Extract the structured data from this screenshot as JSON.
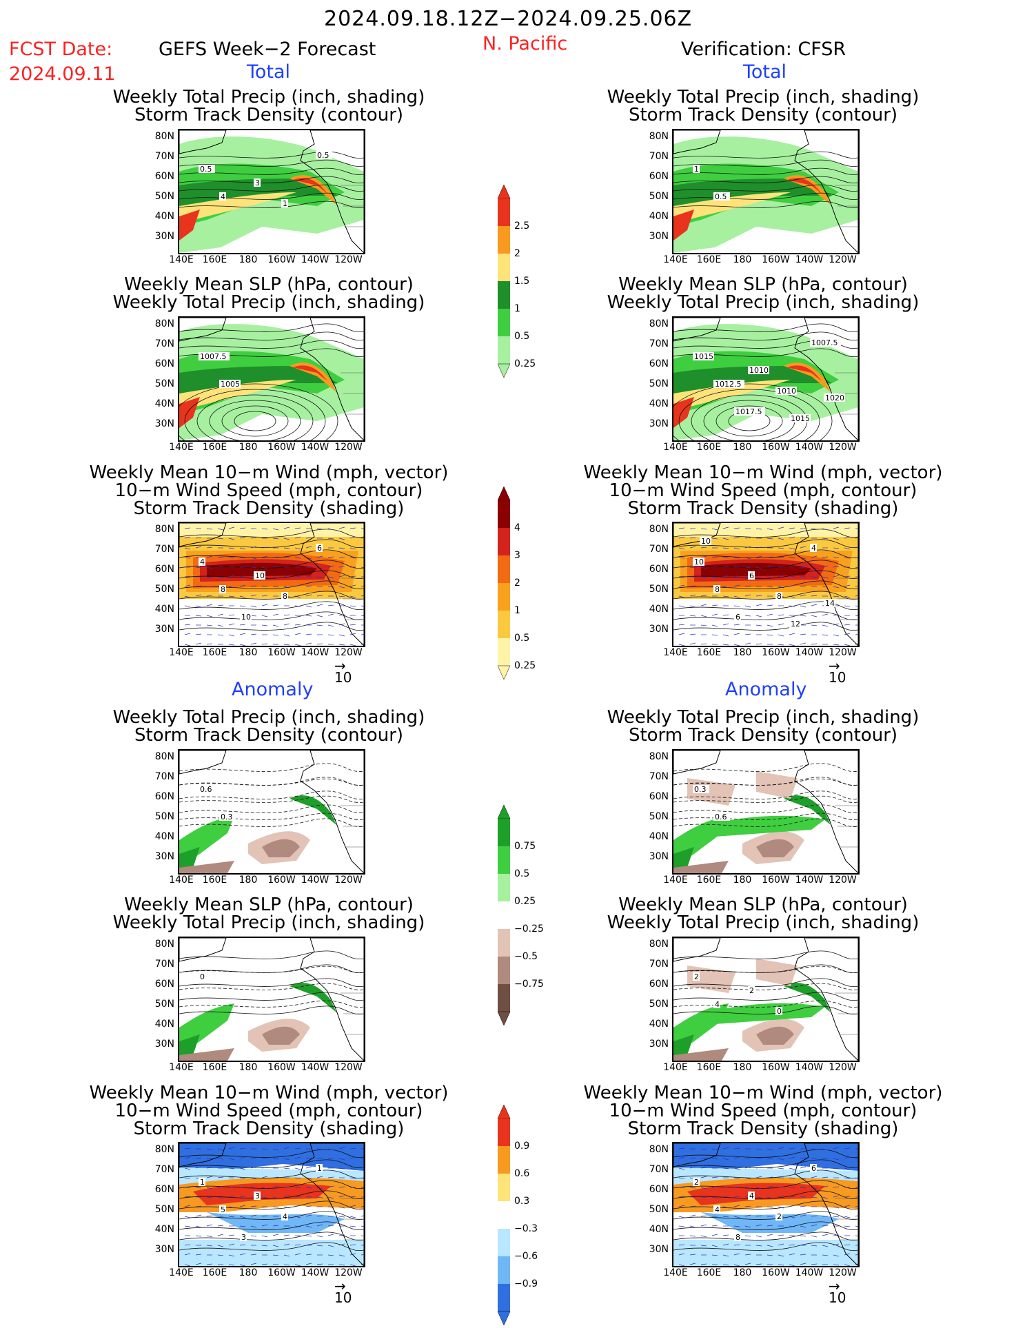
{
  "header": {
    "date_range": "2024.09.18.12Z−2024.09.25.06Z",
    "fcst_label": "FCST Date:",
    "fcst_date": "2024.09.11",
    "model": "GEFS Week−2 Forecast",
    "region": "N. Pacific",
    "verification": "Verification: CFSR"
  },
  "sections": {
    "total": "Total",
    "anomaly": "Anomaly"
  },
  "titles": {
    "precip_track": [
      "Weekly Total Precip (inch, shading)",
      "Storm Track Density (contour)"
    ],
    "slp_precip": [
      "Weekly Mean SLP (hPa, contour)",
      "Weekly Total Precip (inch, shading)"
    ],
    "wind_track": [
      "Weekly Mean 10−m Wind (mph, vector)",
      "10−m Wind Speed (mph, contour)",
      "Storm Track Density (shading)"
    ]
  },
  "axes": {
    "lat_ticks": [
      "80N",
      "70N",
      "60N",
      "50N",
      "40N",
      "30N"
    ],
    "lon_ticks": [
      "140E",
      "160E",
      "180",
      "160W",
      "140W",
      "120W"
    ]
  },
  "vector_ref": "10",
  "colorbars": {
    "precip_total": {
      "labels": [
        "2.5",
        "2",
        "1.5",
        "1",
        "0.5",
        "0.25"
      ],
      "colors": [
        "#e8341c",
        "#f79a1f",
        "#fde37a",
        "#1e8f2a",
        "#3fce3f",
        "#a6f0a0"
      ]
    },
    "track_total": {
      "labels": [
        "4",
        "3",
        "2",
        "1",
        "0.5",
        "0.25"
      ],
      "colors": [
        "#8b0000",
        "#d4221c",
        "#f26a12",
        "#f9a11d",
        "#fbc93f",
        "#fff3a8"
      ]
    },
    "precip_anom": {
      "labels": [
        "0.75",
        "0.5",
        "0.25",
        "−0.25",
        "−0.5",
        "−0.75"
      ],
      "colors": [
        "#1e9f2a",
        "#3fce3f",
        "#a6f0a0",
        "#ffffff",
        "#e2c3b6",
        "#b08a7e",
        "#6f4e43"
      ]
    },
    "track_anom": {
      "labels": [
        "0.9",
        "0.6",
        "0.3",
        "−0.3",
        "−0.6",
        "−0.9"
      ],
      "colors": [
        "#e8341c",
        "#f79a1f",
        "#fde37a",
        "#ffffff",
        "#b8e7ff",
        "#6fb7f5",
        "#2f6fe0"
      ]
    }
  },
  "panel_labels": {
    "l1": [
      "0.5",
      "4",
      "3",
      "1",
      "0.5"
    ],
    "r1": [
      "1",
      "0.5"
    ],
    "l2": [
      "1007.5",
      "1005"
    ],
    "r2": [
      "1015",
      "1012.5",
      "1010",
      "1010",
      "1007.5",
      "1017.5",
      "1015",
      "1020"
    ],
    "l3": [
      "4",
      "8",
      "10",
      "8",
      "6",
      "10"
    ],
    "r3": [
      "10",
      "8",
      "6",
      "8",
      "4",
      "6",
      "12",
      "14",
      "10"
    ],
    "l4": [
      "0.6",
      "0.3"
    ],
    "r4": [
      "0.3",
      "0.6"
    ],
    "l5": [
      "0"
    ],
    "r5": [
      "2",
      "4",
      "2",
      "0"
    ],
    "l6": [
      "1",
      "5",
      "3",
      "4",
      "1",
      "3"
    ],
    "r6": [
      "2",
      "4",
      "4",
      "2",
      "6",
      "8"
    ]
  }
}
